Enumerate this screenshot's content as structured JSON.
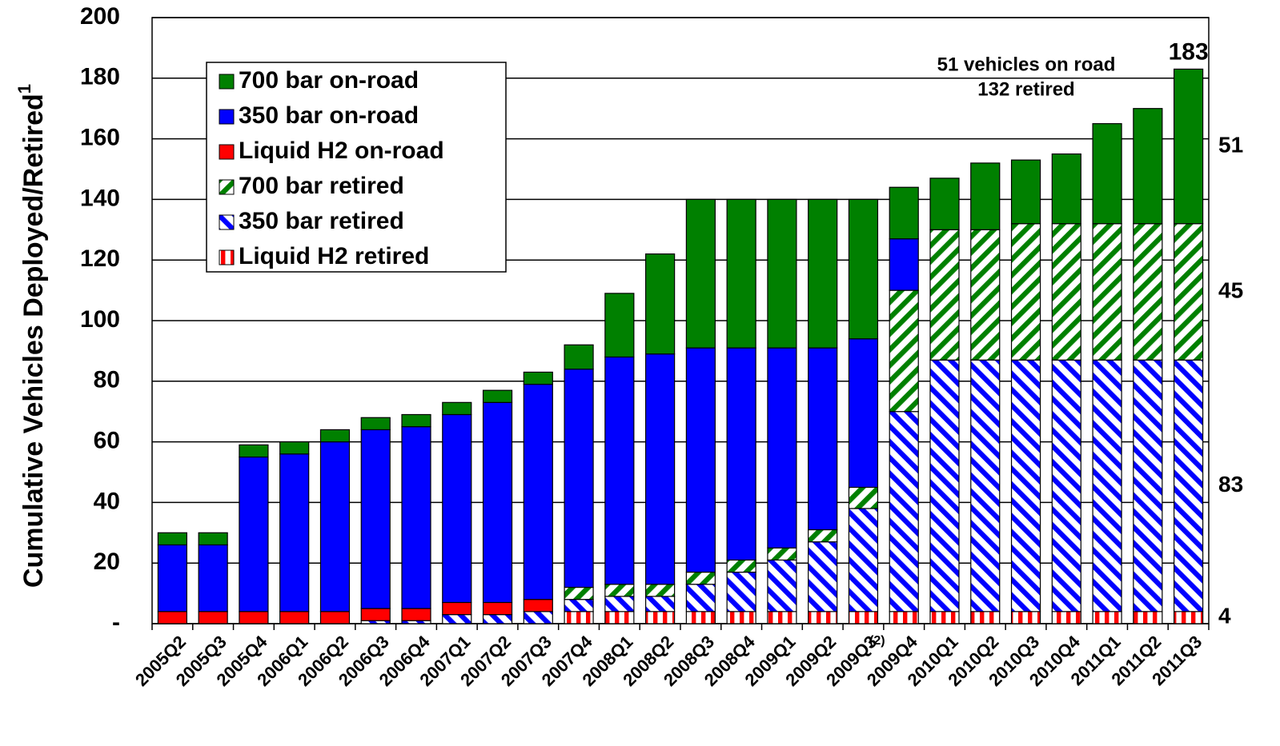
{
  "chart_data": {
    "type": "stacked_bar",
    "ylabel": "Cumulative Vehicles Deployed/Retired",
    "ylabel_superscript": "1",
    "categories": [
      "2005Q2",
      "2005Q3",
      "2005Q4",
      "2006Q1",
      "2006Q2",
      "2006Q3",
      "2006Q4",
      "2007Q1",
      "2007Q2",
      "2007Q3",
      "2007Q4",
      "2008Q1",
      "2008Q2",
      "2008Q3",
      "2008Q4",
      "2009Q1",
      "2009Q2",
      "2009Q3",
      "2009Q4",
      "2010Q1",
      "2010Q2",
      "2010Q3",
      "2010Q4",
      "2011Q1",
      "2011Q2",
      "2011Q3"
    ],
    "category_note": {
      "index": 18,
      "text": "(2)"
    },
    "series": [
      {
        "name": "Liquid H2 retired",
        "color": "#ff0000",
        "pattern": "vertical",
        "values": [
          0,
          0,
          0,
          0,
          0,
          0,
          0,
          0,
          0,
          0,
          4,
          4,
          4,
          4,
          4,
          4,
          4,
          4,
          4,
          4,
          4,
          4,
          4,
          4,
          4,
          4
        ]
      },
      {
        "name": "350 bar retired",
        "color": "#0000ff",
        "pattern": "diagonal-down",
        "values": [
          0,
          0,
          0,
          0,
          0,
          1,
          1,
          3,
          3,
          4,
          4,
          5,
          5,
          9,
          13,
          17,
          23,
          34,
          66,
          83,
          83,
          83,
          83,
          83,
          83,
          83
        ]
      },
      {
        "name": "700 bar retired",
        "color": "#008000",
        "pattern": "diagonal-up",
        "values": [
          0,
          0,
          0,
          0,
          0,
          0,
          0,
          0,
          0,
          0,
          4,
          4,
          4,
          4,
          4,
          4,
          4,
          7,
          40,
          43,
          43,
          45,
          45,
          45,
          45,
          45
        ]
      },
      {
        "name": "Liquid H2 on-road",
        "color": "#ff0000",
        "pattern": "solid",
        "values": [
          4,
          4,
          4,
          4,
          4,
          4,
          4,
          4,
          4,
          4,
          0,
          0,
          0,
          0,
          0,
          0,
          0,
          0,
          0,
          0,
          0,
          0,
          0,
          0,
          0,
          0
        ]
      },
      {
        "name": "350 bar on-road",
        "color": "#0000ff",
        "pattern": "solid",
        "values": [
          22,
          22,
          51,
          52,
          56,
          59,
          60,
          62,
          66,
          71,
          72,
          75,
          76,
          74,
          70,
          66,
          60,
          49,
          17,
          0,
          0,
          0,
          0,
          0,
          0,
          0
        ]
      },
      {
        "name": "700 bar on-road",
        "color": "#008000",
        "pattern": "solid",
        "values": [
          4,
          4,
          4,
          4,
          4,
          4,
          4,
          4,
          4,
          4,
          8,
          21,
          33,
          49,
          49,
          49,
          49,
          46,
          17,
          17,
          22,
          21,
          23,
          33,
          38,
          51
        ]
      }
    ],
    "legend_order": [
      5,
      4,
      3,
      2,
      1,
      0
    ],
    "ylim": [
      0,
      200
    ],
    "yticks": [
      {
        "value": 0,
        "label": "-"
      },
      20,
      40,
      60,
      80,
      100,
      120,
      140,
      160,
      180,
      200
    ],
    "grid": true,
    "annotations": [
      "51 vehicles on road",
      "132 retired"
    ],
    "total_label": "183",
    "right_labels": [
      {
        "series": 5,
        "label": "51"
      },
      {
        "series": 2,
        "label": "45"
      },
      {
        "series": 1,
        "label": "83"
      },
      {
        "series": 0,
        "label": "4"
      }
    ]
  }
}
